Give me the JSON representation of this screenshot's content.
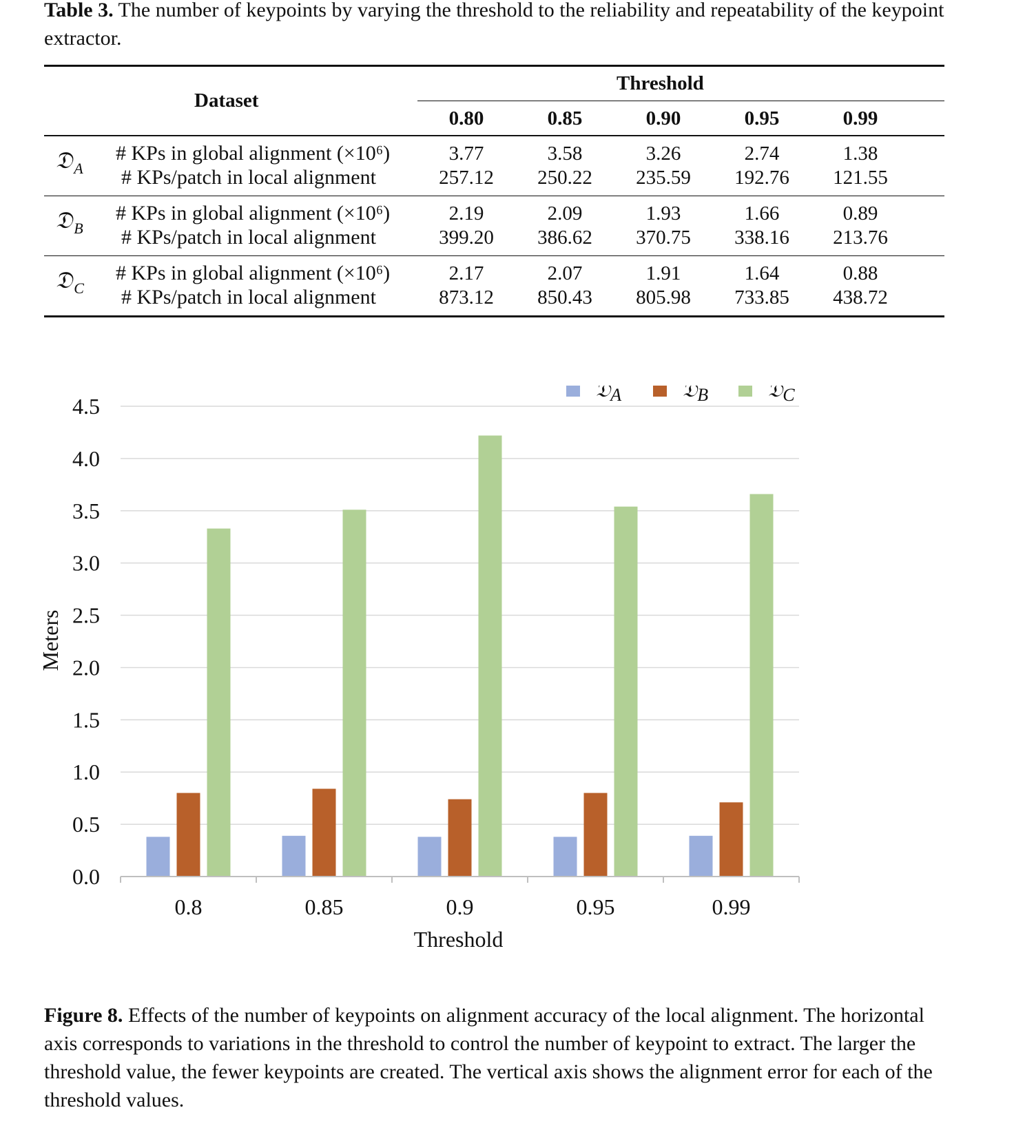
{
  "table_caption": {
    "label": "Table 3.",
    "text": " The number of keypoints by varying the threshold to the reliability and repeatability of the keypoint extractor."
  },
  "table": {
    "dataset_header": "Dataset",
    "threshold_header": "Threshold",
    "thresholds": [
      "0.80",
      "0.85",
      "0.90",
      "0.95",
      "0.99"
    ],
    "row_labels": [
      "# KPs in global alignment (×10⁶)",
      "# KPs/patch in local alignment"
    ],
    "rows": [
      {
        "symbol": "𝔇",
        "sub": "A",
        "global": [
          "3.77",
          "3.58",
          "3.26",
          "2.74",
          "1.38"
        ],
        "local": [
          "257.12",
          "250.22",
          "235.59",
          "192.76",
          "121.55"
        ]
      },
      {
        "symbol": "𝔇",
        "sub": "B",
        "global": [
          "2.19",
          "2.09",
          "1.93",
          "1.66",
          "0.89"
        ],
        "local": [
          "399.20",
          "386.62",
          "370.75",
          "338.16",
          "213.76"
        ]
      },
      {
        "symbol": "𝔇",
        "sub": "C",
        "global": [
          "2.17",
          "2.07",
          "1.91",
          "1.64",
          "0.88"
        ],
        "local": [
          "873.12",
          "850.43",
          "805.98",
          "733.85",
          "438.72"
        ]
      }
    ]
  },
  "chart_data": {
    "type": "bar",
    "categories": [
      "0.8",
      "0.85",
      "0.9",
      "0.95",
      "0.99"
    ],
    "series": [
      {
        "name": "A",
        "color": "#9aaedc",
        "values": [
          0.38,
          0.39,
          0.38,
          0.38,
          0.39
        ]
      },
      {
        "name": "B",
        "color": "#b8602a",
        "values": [
          0.8,
          0.84,
          0.74,
          0.8,
          0.71
        ]
      },
      {
        "name": "C",
        "color": "#b1d095",
        "values": [
          3.33,
          3.51,
          4.22,
          3.54,
          3.66
        ]
      }
    ],
    "xlabel": "Threshold",
    "ylabel": "Meters",
    "ylim": [
      0,
      4.5
    ],
    "yticks": [
      "0.0",
      "0.5",
      "1.0",
      "1.5",
      "2.0",
      "2.5",
      "3.0",
      "3.5",
      "4.0",
      "4.5"
    ],
    "grid": true,
    "legend_position": "top-right",
    "legend_symbol": "𝔇"
  },
  "figure_caption": {
    "label": "Figure 8.",
    "text": " Effects of the number of keypoints on alignment accuracy of the local alignment. The horizontal axis corresponds to variations in the threshold to control the number of keypoint to extract. The larger the threshold value, the fewer keypoints are created. The vertical axis shows the alignment error for each of the threshold values."
  }
}
